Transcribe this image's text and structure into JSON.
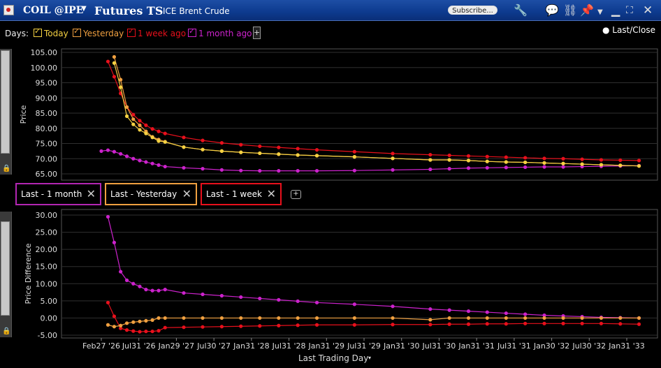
{
  "window": {
    "symbol": "COIL @IPE",
    "tool": "Futures TS",
    "description": "ICE Brent Crude",
    "subscribe_label": "Subscribe..."
  },
  "legend": {
    "days_label": "Days:",
    "items": [
      {
        "label": "Today",
        "color": "#f5d142"
      },
      {
        "label": "Yesterday",
        "color": "#f0a040"
      },
      {
        "label": "1 week ago",
        "color": "#e8101c"
      },
      {
        "label": "1 month ago",
        "color": "#cc22cc"
      }
    ],
    "last_close_label": "Last/Close"
  },
  "tags": [
    {
      "label": "Last - 1 month",
      "color": "#b326b3"
    },
    {
      "label": "Last - Yesterday",
      "color": "#f0a040"
    },
    {
      "label": "Last - 1 week",
      "color": "#e8101c"
    }
  ],
  "chart_data": [
    {
      "type": "line",
      "ylabel": "Price",
      "ylim": [
        65,
        105
      ],
      "yticks": [
        "105.00",
        "100.00",
        "95.00",
        "90.00",
        "85.00",
        "80.00",
        "75.00",
        "70.00",
        "65.00"
      ],
      "x_dates": [
        "2026-02-27",
        "2026-03-31",
        "2026-04-30",
        "2026-05-31",
        "2026-06-30",
        "2026-07-31",
        "2026-08-31",
        "2026-09-30",
        "2026-10-31",
        "2026-11-30",
        "2026-12-31",
        "2027-03-31",
        "2027-06-30",
        "2027-09-30",
        "2027-12-31",
        "2028-03-31",
        "2028-06-30",
        "2028-09-30",
        "2028-12-31",
        "2029-06-30",
        "2029-12-31",
        "2030-06-30",
        "2030-09-30",
        "2030-12-31",
        "2031-03-31",
        "2031-06-30",
        "2031-09-30",
        "2031-12-31",
        "2032-03-31",
        "2032-06-30",
        "2032-09-30",
        "2032-12-31",
        "2033-03-31"
      ],
      "series": [
        {
          "name": "1 month ago",
          "color": "#cc22cc",
          "values": [
            72.5,
            72.8,
            72.3,
            71.6,
            70.8,
            70.0,
            69.4,
            68.9,
            68.4,
            67.9,
            67.4,
            67.0,
            66.7,
            66.3,
            66.1,
            66.0,
            66.0,
            66.0,
            66.0,
            66.1,
            66.3,
            66.5,
            66.7,
            66.9,
            67.0,
            67.1,
            67.2,
            67.3,
            67.3,
            67.4,
            67.5,
            67.6,
            67.7
          ]
        },
        {
          "name": "1 week ago",
          "color": "#e8101c",
          "values": [
            null,
            102.0,
            97.0,
            91.5,
            87.0,
            84.5,
            82.5,
            81.0,
            79.8,
            79.0,
            78.3,
            77.0,
            76.0,
            75.2,
            74.6,
            74.1,
            73.7,
            73.3,
            72.9,
            72.3,
            71.7,
            71.3,
            71.1,
            70.9,
            70.7,
            70.5,
            70.3,
            70.1,
            70.0,
            69.8,
            69.6,
            69.5,
            69.4
          ]
        },
        {
          "name": "Yesterday",
          "color": "#f0a040",
          "values": [
            null,
            null,
            103.5,
            96.0,
            87.0,
            83.0,
            81.0,
            79.0,
            77.2,
            76.3,
            75.6,
            73.8,
            73.0,
            72.5,
            72.1,
            71.8,
            71.5,
            71.2,
            71.0,
            70.6,
            70.1,
            69.6,
            69.6,
            69.4,
            69.1,
            68.9,
            68.8,
            68.6,
            68.4,
            68.2,
            68.0,
            67.8,
            67.6
          ]
        },
        {
          "name": "Today",
          "color": "#f5d142",
          "values": [
            null,
            null,
            101.5,
            93.5,
            84.0,
            81.3,
            79.5,
            78.3,
            77.0,
            75.8,
            75.5,
            73.8,
            73.0,
            72.5,
            72.1,
            71.8,
            71.5,
            71.2,
            71.0,
            70.6,
            70.1,
            69.6,
            69.6,
            69.4,
            69.1,
            68.9,
            68.8,
            68.6,
            68.4,
            68.2,
            68.0,
            67.8,
            67.6
          ]
        }
      ]
    },
    {
      "type": "line",
      "ylabel": "Price Difference",
      "xlabel": "Last Trading Day",
      "ylim": [
        -5,
        30
      ],
      "yticks": [
        "30.00",
        "25.00",
        "20.00",
        "15.00",
        "10.00",
        "5.00",
        "0.00",
        "-5.00"
      ],
      "xticks": [
        "Feb27 '26",
        "Jul31 '26",
        "Jan29 '27",
        "Jul30 '27",
        "Jan31 '28",
        "Jul31 '28",
        "Jan31 '29",
        "Jul31 '29",
        "Jan31 '30",
        "Jul31 '30",
        "Jan31 '31",
        "Jul31 '31",
        "Jan30 '32",
        "Jul30 '32",
        "Jan31 '33"
      ],
      "x_dates": [
        "2026-03-31",
        "2026-04-30",
        "2026-05-31",
        "2026-06-30",
        "2026-07-31",
        "2026-08-31",
        "2026-09-30",
        "2026-10-31",
        "2026-11-30",
        "2026-12-31",
        "2027-03-31",
        "2027-06-30",
        "2027-09-30",
        "2027-12-31",
        "2028-03-31",
        "2028-06-30",
        "2028-09-30",
        "2028-12-31",
        "2029-06-30",
        "2029-12-31",
        "2030-06-30",
        "2030-09-30",
        "2030-12-31",
        "2031-03-31",
        "2031-06-30",
        "2031-09-30",
        "2031-12-31",
        "2032-03-31",
        "2032-06-30",
        "2032-09-30",
        "2032-12-31",
        "2033-03-31"
      ],
      "series": [
        {
          "name": "Last - 1 month",
          "color": "#cc22cc",
          "values": [
            29.5,
            22.0,
            13.5,
            11.0,
            10.0,
            9.2,
            8.3,
            8.0,
            8.0,
            8.3,
            7.3,
            6.9,
            6.5,
            6.1,
            5.7,
            5.3,
            4.9,
            4.5,
            4.0,
            3.4,
            2.6,
            2.3,
            2.0,
            1.7,
            1.4,
            1.1,
            0.8,
            0.6,
            0.4,
            0.2,
            0.1,
            0.0
          ]
        },
        {
          "name": "Last - 1 week",
          "color": "#e8101c",
          "values": [
            4.5,
            0.5,
            -3.0,
            -3.5,
            -3.8,
            -4.0,
            -3.9,
            -3.9,
            -3.7,
            -2.8,
            -2.7,
            -2.6,
            -2.5,
            -2.4,
            -2.3,
            -2.2,
            -2.1,
            -2.0,
            -2.0,
            -1.9,
            -1.9,
            -1.8,
            -1.8,
            -1.7,
            -1.7,
            -1.6,
            -1.6,
            -1.6,
            -1.6,
            -1.6,
            -1.7,
            -1.8
          ]
        },
        {
          "name": "Last - Yesterday",
          "color": "#f0a040",
          "values": [
            -2.0,
            -2.5,
            -2.2,
            -1.5,
            -1.2,
            -1.0,
            -0.8,
            -0.6,
            0.0,
            0.0,
            0.0,
            0.0,
            0.0,
            0.0,
            0.0,
            0.0,
            0.0,
            0.0,
            0.0,
            0.0,
            -0.5,
            0.0,
            0.0,
            0.0,
            0.0,
            0.0,
            0.0,
            0.0,
            0.0,
            0.0,
            0.0,
            0.0
          ]
        }
      ]
    }
  ]
}
